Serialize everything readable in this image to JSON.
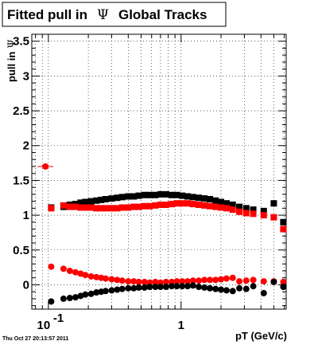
{
  "chart_data": {
    "type": "scatter",
    "title_prefix": "Fitted pull in",
    "title_symbol": "Ψ",
    "title_suffix": "Global Tracks",
    "xlabel": "pT (GeV/c)",
    "ylabel_prefix": "pull in",
    "ylabel_symbol": "Ψ",
    "x_scale": "log",
    "xlim": [
      0.075,
      6.2
    ],
    "ylim": [
      -0.35,
      3.6
    ],
    "grid": true,
    "x_ticks": [
      {
        "value": 0.1,
        "base": "10",
        "exp": "-1"
      },
      {
        "value": 1,
        "label": "1"
      }
    ],
    "y_ticks": [
      "0",
      "0.5",
      "1",
      "1.5",
      "2",
      "2.5",
      "3",
      "3.5"
    ],
    "timestamp": "Thu Oct 27 20:13:57 2011",
    "series": [
      {
        "color": "#000000",
        "marker": "square",
        "points": [
          [
            0.105,
            1.11
          ],
          [
            0.13,
            1.12
          ],
          [
            0.145,
            1.15
          ],
          [
            0.16,
            1.16
          ],
          [
            0.175,
            1.18
          ],
          [
            0.19,
            1.19
          ],
          [
            0.21,
            1.2
          ],
          [
            0.23,
            1.21
          ],
          [
            0.25,
            1.22
          ],
          [
            0.27,
            1.23
          ],
          [
            0.3,
            1.24
          ],
          [
            0.33,
            1.25
          ],
          [
            0.36,
            1.26
          ],
          [
            0.4,
            1.27
          ],
          [
            0.44,
            1.27
          ],
          [
            0.48,
            1.28
          ],
          [
            0.53,
            1.29
          ],
          [
            0.58,
            1.29
          ],
          [
            0.64,
            1.29
          ],
          [
            0.7,
            1.3
          ],
          [
            0.77,
            1.3
          ],
          [
            0.85,
            1.29
          ],
          [
            0.93,
            1.29
          ],
          [
            1.02,
            1.28
          ],
          [
            1.12,
            1.27
          ],
          [
            1.23,
            1.26
          ],
          [
            1.36,
            1.25
          ],
          [
            1.5,
            1.24
          ],
          [
            1.65,
            1.23
          ],
          [
            1.82,
            1.21
          ],
          [
            2.0,
            1.19
          ],
          [
            2.2,
            1.17
          ],
          [
            2.45,
            1.15
          ],
          [
            2.75,
            1.12
          ],
          [
            3.1,
            1.1
          ],
          [
            3.5,
            1.08
          ],
          [
            4.2,
            1.06
          ],
          [
            5.0,
            1.17
          ],
          [
            5.9,
            0.9
          ]
        ]
      },
      {
        "color": "#ff0000",
        "marker": "square",
        "points": [
          [
            0.105,
            1.1
          ],
          [
            0.13,
            1.14
          ],
          [
            0.145,
            1.12
          ],
          [
            0.16,
            1.12
          ],
          [
            0.175,
            1.11
          ],
          [
            0.19,
            1.11
          ],
          [
            0.21,
            1.11
          ],
          [
            0.23,
            1.1
          ],
          [
            0.25,
            1.1
          ],
          [
            0.27,
            1.1
          ],
          [
            0.3,
            1.1
          ],
          [
            0.33,
            1.1
          ],
          [
            0.36,
            1.11
          ],
          [
            0.4,
            1.11
          ],
          [
            0.44,
            1.12
          ],
          [
            0.48,
            1.12
          ],
          [
            0.53,
            1.13
          ],
          [
            0.58,
            1.13
          ],
          [
            0.64,
            1.14
          ],
          [
            0.7,
            1.15
          ],
          [
            0.77,
            1.15
          ],
          [
            0.85,
            1.16
          ],
          [
            0.93,
            1.17
          ],
          [
            1.02,
            1.17
          ],
          [
            1.12,
            1.17
          ],
          [
            1.23,
            1.16
          ],
          [
            1.36,
            1.15
          ],
          [
            1.5,
            1.14
          ],
          [
            1.65,
            1.13
          ],
          [
            1.82,
            1.12
          ],
          [
            2.0,
            1.11
          ],
          [
            2.2,
            1.1
          ],
          [
            2.45,
            1.08
          ],
          [
            2.75,
            1.05
          ],
          [
            3.1,
            1.03
          ],
          [
            3.5,
            1.02
          ],
          [
            4.2,
            1.0
          ],
          [
            5.0,
            0.97
          ],
          [
            5.9,
            0.8
          ]
        ]
      },
      {
        "color": "#ff0000",
        "marker": "circle",
        "points": [
          [
            0.095,
            1.7
          ],
          [
            0.105,
            0.26
          ],
          [
            0.13,
            0.23
          ],
          [
            0.145,
            0.2
          ],
          [
            0.16,
            0.18
          ],
          [
            0.175,
            0.16
          ],
          [
            0.19,
            0.14
          ],
          [
            0.21,
            0.12
          ],
          [
            0.23,
            0.11
          ],
          [
            0.25,
            0.1
          ],
          [
            0.27,
            0.09
          ],
          [
            0.3,
            0.08
          ],
          [
            0.33,
            0.07
          ],
          [
            0.36,
            0.06
          ],
          [
            0.4,
            0.05
          ],
          [
            0.44,
            0.05
          ],
          [
            0.48,
            0.04
          ],
          [
            0.53,
            0.04
          ],
          [
            0.58,
            0.03
          ],
          [
            0.64,
            0.04
          ],
          [
            0.7,
            0.03
          ],
          [
            0.77,
            0.04
          ],
          [
            0.85,
            0.04
          ],
          [
            0.93,
            0.05
          ],
          [
            1.02,
            0.05
          ],
          [
            1.12,
            0.05
          ],
          [
            1.23,
            0.06
          ],
          [
            1.36,
            0.06
          ],
          [
            1.5,
            0.07
          ],
          [
            1.65,
            0.07
          ],
          [
            1.82,
            0.07
          ],
          [
            2.0,
            0.08
          ],
          [
            2.2,
            0.09
          ],
          [
            2.45,
            0.1
          ],
          [
            2.75,
            0.05
          ],
          [
            3.1,
            0.06
          ],
          [
            3.5,
            0.07
          ],
          [
            4.2,
            0.05
          ],
          [
            5.0,
            0.05
          ],
          [
            5.9,
            0.04
          ]
        ]
      },
      {
        "color": "#000000",
        "marker": "circle",
        "points": [
          [
            0.105,
            -0.24
          ],
          [
            0.13,
            -0.2
          ],
          [
            0.145,
            -0.19
          ],
          [
            0.16,
            -0.18
          ],
          [
            0.175,
            -0.16
          ],
          [
            0.19,
            -0.14
          ],
          [
            0.21,
            -0.13
          ],
          [
            0.23,
            -0.11
          ],
          [
            0.25,
            -0.1
          ],
          [
            0.27,
            -0.09
          ],
          [
            0.3,
            -0.08
          ],
          [
            0.33,
            -0.07
          ],
          [
            0.36,
            -0.06
          ],
          [
            0.4,
            -0.05
          ],
          [
            0.44,
            -0.05
          ],
          [
            0.48,
            -0.04
          ],
          [
            0.53,
            -0.04
          ],
          [
            0.58,
            -0.03
          ],
          [
            0.64,
            -0.03
          ],
          [
            0.7,
            -0.03
          ],
          [
            0.77,
            -0.03
          ],
          [
            0.85,
            -0.02
          ],
          [
            0.93,
            -0.02
          ],
          [
            1.02,
            -0.02
          ],
          [
            1.12,
            -0.02
          ],
          [
            1.23,
            -0.01
          ],
          [
            1.36,
            -0.03
          ],
          [
            1.5,
            -0.04
          ],
          [
            1.65,
            -0.05
          ],
          [
            1.82,
            -0.06
          ],
          [
            2.0,
            -0.07
          ],
          [
            2.2,
            -0.08
          ],
          [
            2.45,
            -0.09
          ],
          [
            2.75,
            -0.05
          ],
          [
            3.1,
            -0.06
          ],
          [
            3.5,
            -0.02
          ],
          [
            4.2,
            -0.12
          ],
          [
            5.0,
            0.04
          ],
          [
            5.9,
            -0.03
          ]
        ]
      }
    ]
  }
}
